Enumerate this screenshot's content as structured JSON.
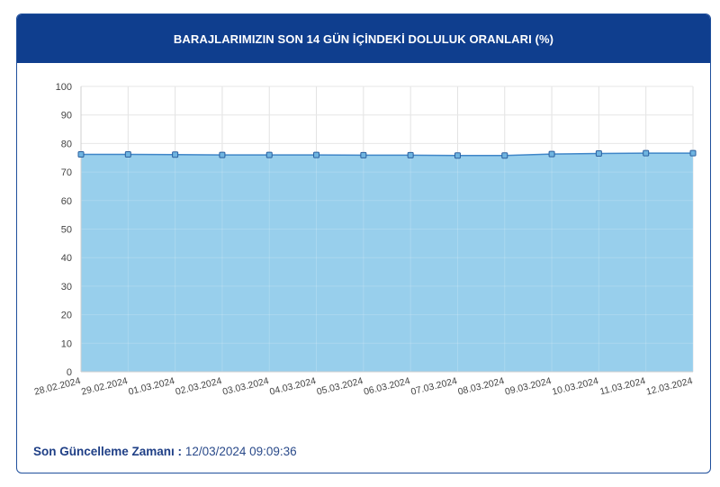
{
  "header": {
    "title": "BARAJLARIMIZIN SON 14 GÜN İÇİNDEKİ DOLULUK ORANLARI (%)"
  },
  "footer": {
    "label": "Son Güncelleme Zamanı :",
    "value": "12/03/2024 09:09:36"
  },
  "colors": {
    "header_bg": "#0f3e8e",
    "area_fill": "#98cfec",
    "line": "#3f86c8",
    "marker_fill": "#6fb4e0",
    "marker_stroke": "#2b5f9e"
  },
  "chart_data": {
    "type": "area",
    "title": "BARAJLARIMIZIN SON 14 GÜN İÇİNDEKİ DOLULUK ORANLARI (%)",
    "xlabel": "",
    "ylabel": "",
    "ylim": [
      0,
      100
    ],
    "yticks": [
      0,
      10,
      20,
      30,
      40,
      50,
      60,
      70,
      80,
      90,
      100
    ],
    "grid": true,
    "categories": [
      "28.02.2024",
      "29.02.2024",
      "01.03.2024",
      "02.03.2024",
      "03.03.2024",
      "04.03.2024",
      "05.03.2024",
      "06.03.2024",
      "07.03.2024",
      "08.03.2024",
      "09.03.2024",
      "10.03.2024",
      "11.03.2024",
      "12.03.2024"
    ],
    "series": [
      {
        "values": [
          76.2,
          76.2,
          76.1,
          76.0,
          76.0,
          76.0,
          75.9,
          75.9,
          75.8,
          75.8,
          76.3,
          76.5,
          76.6,
          76.6
        ]
      }
    ]
  }
}
